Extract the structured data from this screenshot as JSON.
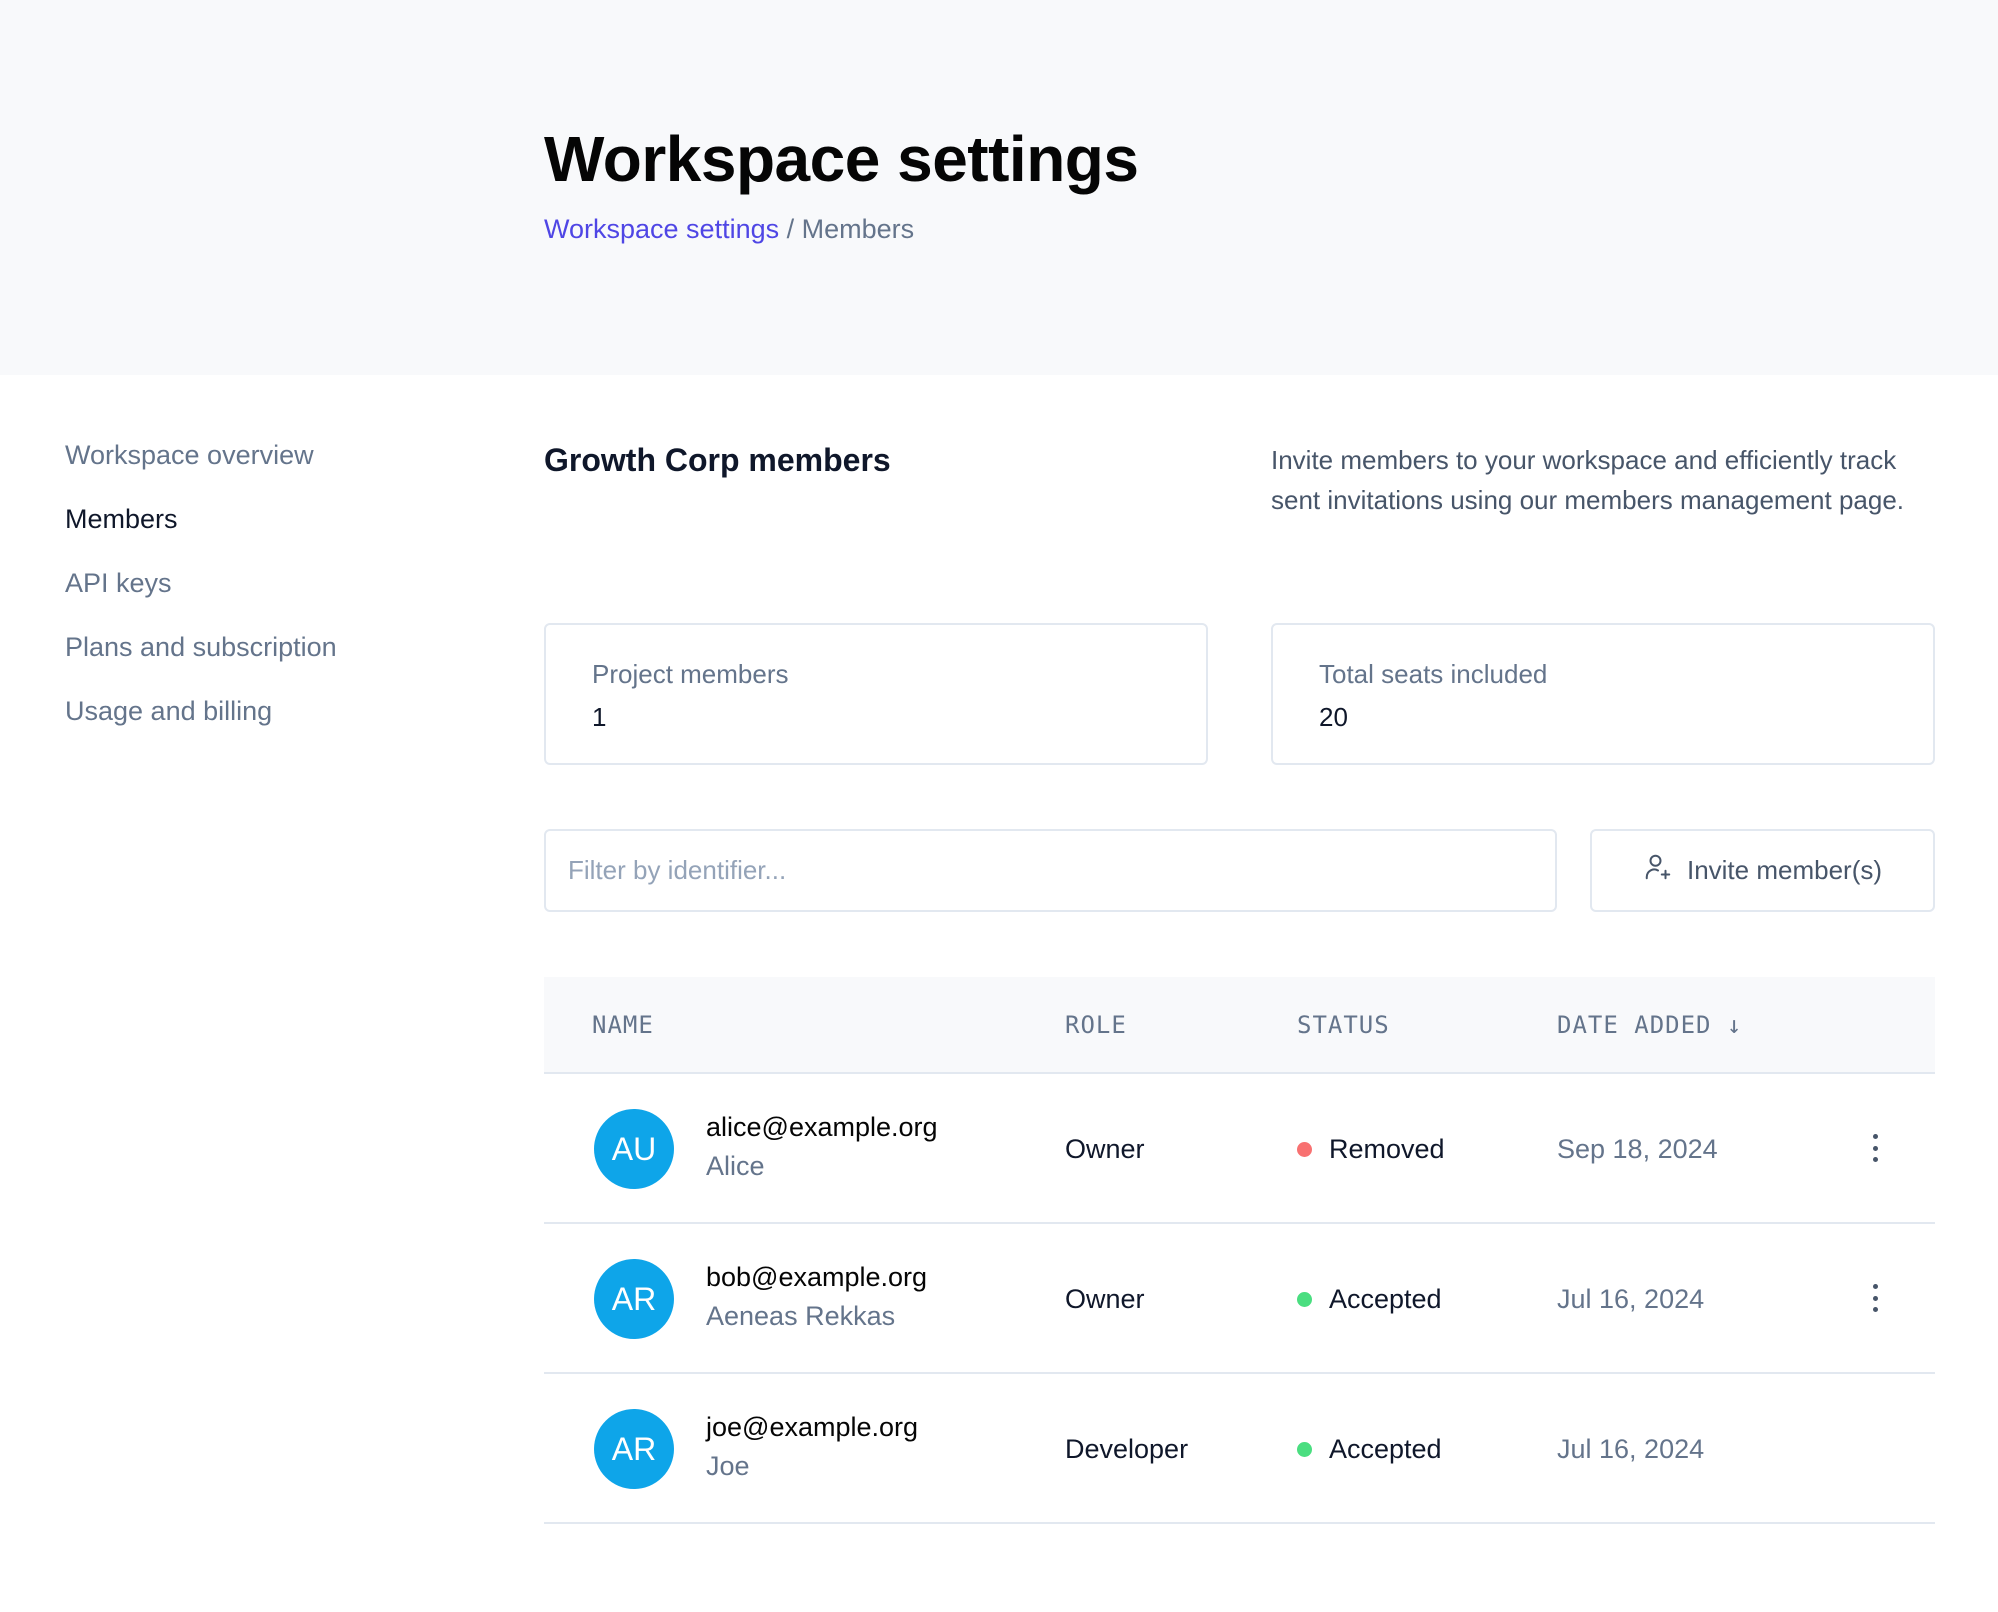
{
  "header": {
    "title": "Workspace settings",
    "breadcrumb": {
      "link": "Workspace settings",
      "separator": "/",
      "current": "Members"
    }
  },
  "sidebar": {
    "items": [
      {
        "label": "Workspace overview",
        "active": false
      },
      {
        "label": "Members",
        "active": true
      },
      {
        "label": "API keys",
        "active": false
      },
      {
        "label": "Plans and subscription",
        "active": false
      },
      {
        "label": "Usage and billing",
        "active": false
      }
    ]
  },
  "main": {
    "title": "Growth Corp members",
    "description": "Invite members to your workspace and efficiently track sent invitations using our members management page.",
    "stats": [
      {
        "label": "Project members",
        "value": "1"
      },
      {
        "label": "Total seats included",
        "value": "20"
      }
    ],
    "filter": {
      "placeholder": "Filter by identifier...",
      "value": ""
    },
    "invite_label": "Invite member(s)",
    "table": {
      "columns": [
        "NAME",
        "ROLE",
        "STATUS",
        "DATE ADDED ↓"
      ],
      "rows": [
        {
          "initials": "AU",
          "email": "alice@example.org",
          "name": "Alice",
          "role": "Owner",
          "status": "Removed",
          "status_color": "#f87171",
          "date": "Sep 18, 2024",
          "menu": true
        },
        {
          "initials": "AR",
          "email": "bob@example.org",
          "name": "Aeneas Rekkas",
          "role": "Owner",
          "status": "Accepted",
          "status_color": "#4ade80",
          "date": "Jul 16, 2024",
          "menu": true
        },
        {
          "initials": "AR",
          "email": "joe@example.org",
          "name": "Joe",
          "role": "Developer",
          "status": "Accepted",
          "status_color": "#4ade80",
          "date": "Jul 16, 2024",
          "menu": false
        }
      ]
    }
  },
  "colors": {
    "accent": "#4f46e5",
    "avatar": "#0ea5e9"
  }
}
